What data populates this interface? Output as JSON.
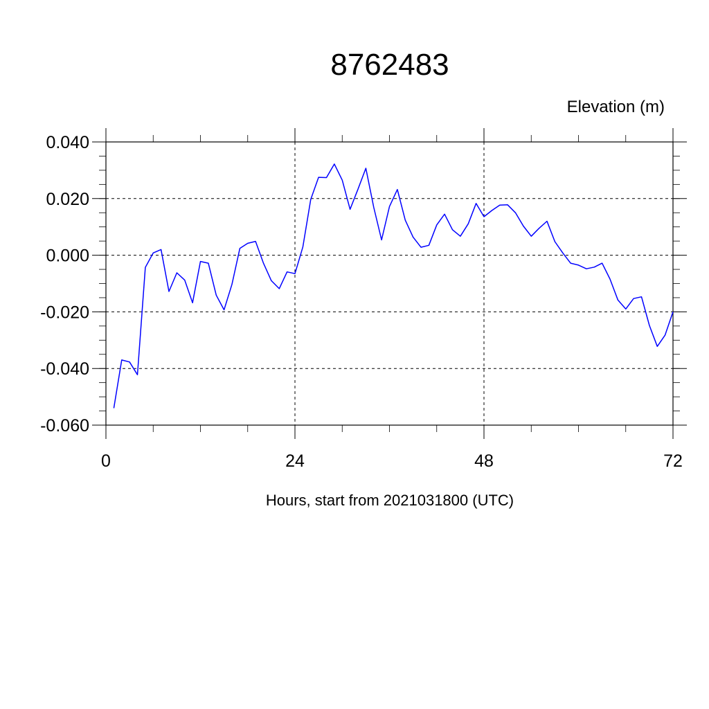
{
  "chart_data": {
    "type": "line",
    "title": "8762483",
    "ylabel": "Elevation (m)",
    "xlabel": "Hours, start from 2021031800 (UTC)",
    "xlim": [
      0,
      72
    ],
    "ylim": [
      -0.06,
      0.04
    ],
    "x_ticks": [
      0,
      24,
      48,
      72
    ],
    "x_tick_labels": [
      "0",
      "24",
      "48",
      "72"
    ],
    "y_ticks": [
      -0.06,
      -0.04,
      -0.02,
      0.0,
      0.02,
      0.04
    ],
    "y_tick_labels": [
      "-0.060",
      "-0.040",
      "-0.020",
      "0.000",
      "0.020",
      "0.040"
    ],
    "grid": true,
    "series_color": "#0000ff",
    "series": [
      {
        "x": [
          1,
          2,
          3,
          4,
          5,
          6,
          7,
          8,
          9,
          10,
          11,
          12,
          13,
          14,
          15,
          16,
          17,
          18,
          19,
          20,
          21,
          22,
          23,
          24,
          25,
          26,
          27,
          28,
          29,
          30,
          31,
          32,
          33,
          34,
          35,
          36,
          37,
          38,
          39,
          40,
          41,
          42,
          43,
          44,
          45,
          46,
          47,
          48,
          49,
          50,
          51,
          52,
          53,
          54,
          55,
          56,
          57,
          58,
          59,
          60,
          61,
          62,
          63,
          64,
          65,
          66,
          67,
          68,
          69,
          70,
          71,
          72
        ],
        "values": [
          -0.054,
          -0.037,
          -0.0377,
          -0.0422,
          -0.0043,
          0.0008,
          0.002,
          -0.0128,
          -0.0062,
          -0.0088,
          -0.0168,
          -0.0022,
          -0.0028,
          -0.0141,
          -0.0193,
          -0.0103,
          0.0024,
          0.0042,
          0.0049,
          -0.0028,
          -0.009,
          -0.0118,
          -0.0059,
          -0.0065,
          0.0029,
          0.0197,
          0.0275,
          0.0274,
          0.0322,
          0.0265,
          0.0162,
          0.0233,
          0.0307,
          0.0169,
          0.0054,
          0.0172,
          0.0232,
          0.0124,
          0.0064,
          0.0028,
          0.0035,
          0.0107,
          0.0145,
          0.009,
          0.0067,
          0.0111,
          0.0183,
          0.0136,
          0.0158,
          0.0177,
          0.0178,
          0.015,
          0.0103,
          0.0067,
          0.0095,
          0.012,
          0.0048,
          0.0008,
          -0.0028,
          -0.0035,
          -0.0048,
          -0.0042,
          -0.0028,
          -0.0084,
          -0.0158,
          -0.019,
          -0.0153,
          -0.0147,
          -0.0248,
          -0.0322,
          -0.0282,
          -0.02
        ]
      }
    ]
  }
}
